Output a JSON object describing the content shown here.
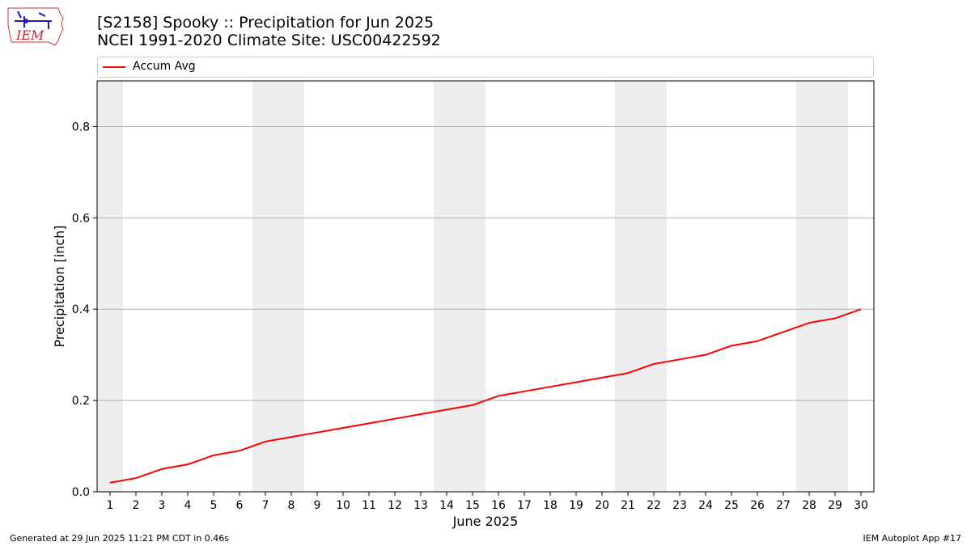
{
  "header": {
    "title_line1": "[S2158] Spooky :: Precipitation for Jun 2025",
    "title_line2": "NCEI 1991-2020 Climate Site: USC00422592",
    "logo_text": "IEM"
  },
  "footer": {
    "left": "Generated at 29 Jun 2025 11:21 PM CDT in 0.46s",
    "right": "IEM Autoplot App #17"
  },
  "colors": {
    "series": "#ff0000",
    "weekend_band": "#eeeeee",
    "grid": "#b0b0b0"
  },
  "chart_data": {
    "type": "line",
    "title": "[S2158] Spooky :: Precipitation for Jun 2025",
    "subtitle": "NCEI 1991-2020 Climate Site: USC00422592",
    "xlabel": "June 2025",
    "ylabel": "Precipitation [inch]",
    "xlim": [
      0.5,
      30.5
    ],
    "ylim": [
      0,
      0.9
    ],
    "x_ticks": [
      1,
      2,
      3,
      4,
      5,
      6,
      7,
      8,
      9,
      10,
      11,
      12,
      13,
      14,
      15,
      16,
      17,
      18,
      19,
      20,
      21,
      22,
      23,
      24,
      25,
      26,
      27,
      28,
      29,
      30
    ],
    "y_ticks": [
      0.0,
      0.2,
      0.4,
      0.6,
      0.8
    ],
    "y_tick_labels": [
      "0.0",
      "0.2",
      "0.4",
      "0.6",
      "0.8"
    ],
    "grid": "horizontal",
    "legend_position": "top",
    "shaded_day_ranges": [
      [
        0.5,
        1.5
      ],
      [
        6.5,
        8.5
      ],
      [
        13.5,
        15.5
      ],
      [
        20.5,
        22.5
      ],
      [
        27.5,
        29.5
      ]
    ],
    "series": [
      {
        "name": "Accum Avg",
        "color": "#ff0000",
        "x": [
          1,
          2,
          3,
          4,
          5,
          6,
          7,
          8,
          9,
          10,
          11,
          12,
          13,
          14,
          15,
          16,
          17,
          18,
          19,
          20,
          21,
          22,
          23,
          24,
          25,
          26,
          27,
          28,
          29,
          30
        ],
        "values": [
          0.02,
          0.03,
          0.05,
          0.06,
          0.08,
          0.09,
          0.11,
          0.12,
          0.13,
          0.14,
          0.15,
          0.16,
          0.17,
          0.18,
          0.19,
          0.21,
          0.22,
          0.23,
          0.24,
          0.25,
          0.26,
          0.28,
          0.29,
          0.3,
          0.32,
          0.33,
          0.35,
          0.37,
          0.38,
          0.4
        ]
      }
    ]
  }
}
